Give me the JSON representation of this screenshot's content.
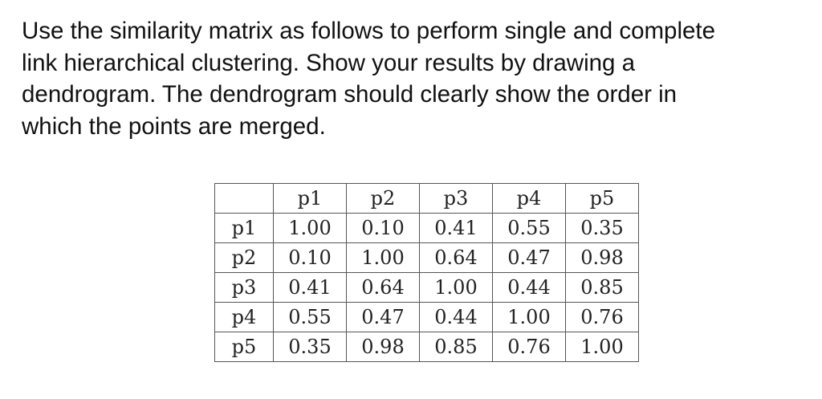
{
  "question": {
    "lines": [
      "Use the similarity matrix as follows to perform single and complete",
      "link hierarchical clustering. Show your results by drawing a",
      "dendrogram. The dendrogram should clearly show the order in",
      "which the points are merged."
    ]
  },
  "matrix": {
    "columns": [
      "",
      "p1",
      "p2",
      "p3",
      "p4",
      "p5"
    ],
    "rows": [
      [
        "p1",
        "1.00",
        "0.10",
        "0.41",
        "0.55",
        "0.35"
      ],
      [
        "p2",
        "0.10",
        "1.00",
        "0.64",
        "0.47",
        "0.98"
      ],
      [
        "p3",
        "0.41",
        "0.64",
        "1.00",
        "0.44",
        "0.85"
      ],
      [
        "p4",
        "0.55",
        "0.47",
        "0.44",
        "1.00",
        "0.76"
      ],
      [
        "p5",
        "0.35",
        "0.98",
        "0.85",
        "0.76",
        "1.00"
      ]
    ]
  }
}
